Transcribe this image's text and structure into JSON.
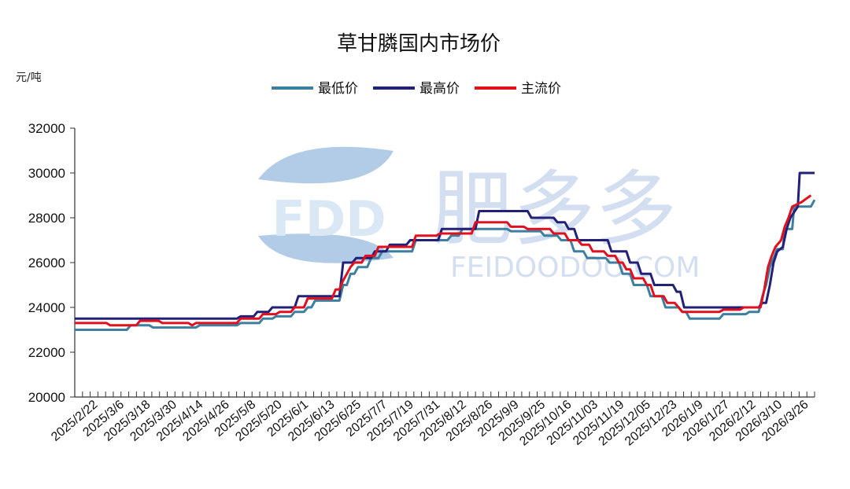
{
  "watermark": {
    "logo_text": "FDD",
    "brand_text": "肥多多",
    "site_text": "FEIDOODOO.COM"
  },
  "colors": {
    "low": "#3e7e9e",
    "high": "#232078",
    "main": "#e0101e"
  },
  "chart_data": {
    "type": "line",
    "title": "草甘膦国内市场价",
    "unit_label": "元/吨",
    "ylim": [
      20000,
      32000
    ],
    "y_ticks": [
      20000,
      22000,
      24000,
      26000,
      28000,
      30000,
      32000
    ],
    "y_tick_labels": [
      "20000",
      "22000",
      "24000",
      "26000",
      "28000",
      "30000",
      "32000"
    ],
    "legend_position": "top-center",
    "grid": false,
    "step": true,
    "x_tick_labels": [
      "2025/2/22",
      "2025/3/6",
      "2025/3/18",
      "2025/3/30",
      "2025/4/14",
      "2025/4/26",
      "2025/5/8",
      "2025/5/20",
      "2025/6/1",
      "2025/6/13",
      "2025/6/25",
      "2025/7/7",
      "2025/7/19",
      "2025/7/31",
      "2025/8/12",
      "2025/8/26",
      "2025/9/9",
      "2025/9/25",
      "2025/10/16",
      "2025/11/03",
      "2025/11/19",
      "2025/12/05",
      "2025/12/23",
      "2026/1/9",
      "2026/1/27",
      "2026/2/12",
      "2026/3/10",
      "2026/3/26"
    ],
    "series": [
      {
        "name": "最低价",
        "color_key": "low",
        "points": [
          [
            "2025/2/22",
            23000
          ],
          [
            "2025/3/22",
            23000
          ],
          [
            "2025/3/24",
            23200
          ],
          [
            "2025/4/3",
            23200
          ],
          [
            "2025/4/5",
            23100
          ],
          [
            "2025/4/28",
            23100
          ],
          [
            "2025/4/30",
            23200
          ],
          [
            "2025/5/20",
            23200
          ],
          [
            "2025/5/22",
            23300
          ],
          [
            "2025/6/1",
            23300
          ],
          [
            "2025/6/3",
            23500
          ],
          [
            "2025/6/8",
            23500
          ],
          [
            "2025/6/10",
            23600
          ],
          [
            "2025/6/18",
            23600
          ],
          [
            "2025/6/20",
            23800
          ],
          [
            "2025/6/25",
            23800
          ],
          [
            "2025/6/27",
            24000
          ],
          [
            "2025/6/29",
            24000
          ],
          [
            "2025/7/1",
            24300
          ],
          [
            "2025/7/14",
            24300
          ],
          [
            "2025/7/16",
            25000
          ],
          [
            "2025/7/18",
            25000
          ],
          [
            "2025/7/20",
            25500
          ],
          [
            "2025/7/22",
            25500
          ],
          [
            "2025/7/24",
            25800
          ],
          [
            "2025/7/29",
            25800
          ],
          [
            "2025/7/31",
            26200
          ],
          [
            "2025/8/4",
            26200
          ],
          [
            "2025/8/6",
            26500
          ],
          [
            "2025/8/22",
            26500
          ],
          [
            "2025/8/24",
            27000
          ],
          [
            "2025/9/10",
            27000
          ],
          [
            "2025/9/12",
            27200
          ],
          [
            "2025/9/16",
            27200
          ],
          [
            "2025/9/18",
            27500
          ],
          [
            "2025/10/12",
            27500
          ],
          [
            "2025/10/14",
            27400
          ],
          [
            "2025/10/30",
            27400
          ],
          [
            "2025/11/1",
            27200
          ],
          [
            "2025/11/8",
            27200
          ],
          [
            "2025/11/10",
            27000
          ],
          [
            "2025/11/15",
            27000
          ],
          [
            "2025/11/17",
            26500
          ],
          [
            "2025/11/22",
            26500
          ],
          [
            "2025/11/24",
            26200
          ],
          [
            "2025/12/4",
            26200
          ],
          [
            "2025/12/6",
            26000
          ],
          [
            "2025/12/11",
            26000
          ],
          [
            "2025/12/13",
            25500
          ],
          [
            "2025/12/17",
            25500
          ],
          [
            "2025/12/19",
            25000
          ],
          [
            "2025/12/26",
            25000
          ],
          [
            "2025/12/28",
            24500
          ],
          [
            "2026/1/3",
            24500
          ],
          [
            "2026/1/5",
            24000
          ],
          [
            "2026/1/12",
            24000
          ],
          [
            "2026/1/14",
            23800
          ],
          [
            "2026/1/16",
            23800
          ],
          [
            "2026/1/18",
            23500
          ],
          [
            "2026/2/3",
            23500
          ],
          [
            "2026/2/5",
            23700
          ],
          [
            "2026/2/17",
            23700
          ],
          [
            "2026/2/19",
            23800
          ],
          [
            "2026/2/24",
            23800
          ],
          [
            "2026/2/26",
            24500
          ],
          [
            "2026/2/28",
            25000
          ],
          [
            "2026/3/2",
            25800
          ],
          [
            "2026/3/4",
            26200
          ],
          [
            "2026/3/6",
            26600
          ],
          [
            "2026/3/9",
            26600
          ],
          [
            "2026/3/10",
            27500
          ],
          [
            "2026/3/14",
            27500
          ],
          [
            "2026/3/15",
            28500
          ],
          [
            "2026/3/24",
            28500
          ],
          [
            "2026/3/26",
            28800
          ]
        ]
      },
      {
        "name": "最高价",
        "color_key": "high",
        "points": [
          [
            "2025/2/22",
            23500
          ],
          [
            "2025/5/20",
            23500
          ],
          [
            "2025/5/22",
            23600
          ],
          [
            "2025/5/29",
            23600
          ],
          [
            "2025/5/31",
            23800
          ],
          [
            "2025/6/6",
            23800
          ],
          [
            "2025/6/8",
            24000
          ],
          [
            "2025/6/20",
            24000
          ],
          [
            "2025/6/22",
            24500
          ],
          [
            "2025/7/14",
            24500
          ],
          [
            "2025/7/16",
            26000
          ],
          [
            "2025/7/21",
            26000
          ],
          [
            "2025/7/23",
            26200
          ],
          [
            "2025/7/31",
            26200
          ],
          [
            "2025/8/2",
            26500
          ],
          [
            "2025/8/8",
            26500
          ],
          [
            "2025/8/10",
            26800
          ],
          [
            "2025/8/19",
            26800
          ],
          [
            "2025/8/21",
            27000
          ],
          [
            "2025/9/5",
            27000
          ],
          [
            "2025/9/7",
            27500
          ],
          [
            "2025/9/25",
            27500
          ],
          [
            "2025/9/27",
            28300
          ],
          [
            "2025/10/23",
            28300
          ],
          [
            "2025/10/25",
            28000
          ],
          [
            "2025/11/6",
            28000
          ],
          [
            "2025/11/8",
            27800
          ],
          [
            "2025/11/12",
            27800
          ],
          [
            "2025/11/14",
            27500
          ],
          [
            "2025/11/17",
            27500
          ],
          [
            "2025/11/19",
            27000
          ],
          [
            "2025/12/5",
            27000
          ],
          [
            "2025/12/7",
            26500
          ],
          [
            "2025/12/15",
            26500
          ],
          [
            "2025/12/17",
            26000
          ],
          [
            "2025/12/21",
            26000
          ],
          [
            "2025/12/23",
            25500
          ],
          [
            "2025/12/28",
            25500
          ],
          [
            "2025/12/30",
            25000
          ],
          [
            "2026/1/9",
            25000
          ],
          [
            "2026/1/11",
            24700
          ],
          [
            "2026/1/13",
            24700
          ],
          [
            "2026/1/15",
            24000
          ],
          [
            "2026/2/24",
            24000
          ],
          [
            "2026/2/26",
            24200
          ],
          [
            "2026/2/28",
            24200
          ],
          [
            "2026/3/2",
            25000
          ],
          [
            "2026/3/4",
            26000
          ],
          [
            "2026/3/6",
            26500
          ],
          [
            "2026/3/9",
            26700
          ],
          [
            "2026/3/11",
            27500
          ],
          [
            "2026/3/13",
            28000
          ],
          [
            "2026/3/17",
            28500
          ],
          [
            "2026/3/18",
            30000
          ],
          [
            "2026/3/26",
            30000
          ]
        ]
      },
      {
        "name": "主流价",
        "color_key": "main",
        "points": [
          [
            "2025/2/22",
            23300
          ],
          [
            "2025/3/11",
            23300
          ],
          [
            "2025/3/13",
            23200
          ],
          [
            "2025/3/27",
            23200
          ],
          [
            "2025/3/29",
            23400
          ],
          [
            "2025/4/8",
            23400
          ],
          [
            "2025/4/10",
            23300
          ],
          [
            "2025/4/24",
            23300
          ],
          [
            "2025/4/26",
            23200
          ],
          [
            "2025/4/28",
            23300
          ],
          [
            "2025/5/20",
            23300
          ],
          [
            "2025/5/22",
            23500
          ],
          [
            "2025/6/1",
            23500
          ],
          [
            "2025/6/3",
            23700
          ],
          [
            "2025/6/10",
            23700
          ],
          [
            "2025/6/12",
            23800
          ],
          [
            "2025/6/18",
            23800
          ],
          [
            "2025/6/20",
            24000
          ],
          [
            "2025/6/25",
            24000
          ],
          [
            "2025/6/27",
            24400
          ],
          [
            "2025/7/10",
            24400
          ],
          [
            "2025/7/12",
            24800
          ],
          [
            "2025/7/14",
            24800
          ],
          [
            "2025/7/16",
            25200
          ],
          [
            "2025/7/18",
            25500
          ],
          [
            "2025/7/20",
            25800
          ],
          [
            "2025/7/22",
            26000
          ],
          [
            "2025/7/26",
            26000
          ],
          [
            "2025/7/28",
            26300
          ],
          [
            "2025/8/2",
            26300
          ],
          [
            "2025/8/4",
            26700
          ],
          [
            "2025/8/22",
            26700
          ],
          [
            "2025/8/24",
            27200
          ],
          [
            "2025/9/4",
            27200
          ],
          [
            "2025/9/6",
            27300
          ],
          [
            "2025/9/23",
            27300
          ],
          [
            "2025/9/25",
            27800
          ],
          [
            "2025/10/12",
            27800
          ],
          [
            "2025/10/14",
            27600
          ],
          [
            "2025/10/21",
            27600
          ],
          [
            "2025/10/23",
            27500
          ],
          [
            "2025/11/4",
            27500
          ],
          [
            "2025/11/6",
            27300
          ],
          [
            "2025/11/12",
            27300
          ],
          [
            "2025/11/14",
            27000
          ],
          [
            "2025/11/19",
            27000
          ],
          [
            "2025/11/21",
            26800
          ],
          [
            "2025/11/25",
            26800
          ],
          [
            "2025/11/27",
            26500
          ],
          [
            "2025/12/3",
            26500
          ],
          [
            "2025/12/5",
            26300
          ],
          [
            "2025/12/9",
            26300
          ],
          [
            "2025/12/11",
            26000
          ],
          [
            "2025/12/13",
            26000
          ],
          [
            "2025/12/15",
            25700
          ],
          [
            "2025/12/17",
            25700
          ],
          [
            "2025/12/19",
            25300
          ],
          [
            "2025/12/24",
            25300
          ],
          [
            "2025/12/26",
            25000
          ],
          [
            "2025/12/28",
            25000
          ],
          [
            "2025/12/30",
            24500
          ],
          [
            "2026/1/4",
            24500
          ],
          [
            "2026/1/6",
            24200
          ],
          [
            "2026/1/10",
            24200
          ],
          [
            "2026/1/12",
            24000
          ],
          [
            "2026/1/14",
            23800
          ],
          [
            "2026/2/3",
            23800
          ],
          [
            "2026/2/5",
            23900
          ],
          [
            "2026/2/14",
            23900
          ],
          [
            "2026/2/16",
            24000
          ],
          [
            "2026/2/25",
            24000
          ],
          [
            "2026/2/27",
            24800
          ],
          [
            "2026/3/1",
            25800
          ],
          [
            "2026/3/3",
            26300
          ],
          [
            "2026/3/5",
            26700
          ],
          [
            "2026/3/8",
            27000
          ],
          [
            "2026/3/10",
            27600
          ],
          [
            "2026/3/12",
            28000
          ],
          [
            "2026/3/14",
            28500
          ],
          [
            "2026/3/19",
            28700
          ],
          [
            "2026/3/24",
            29000
          ]
        ]
      }
    ]
  }
}
